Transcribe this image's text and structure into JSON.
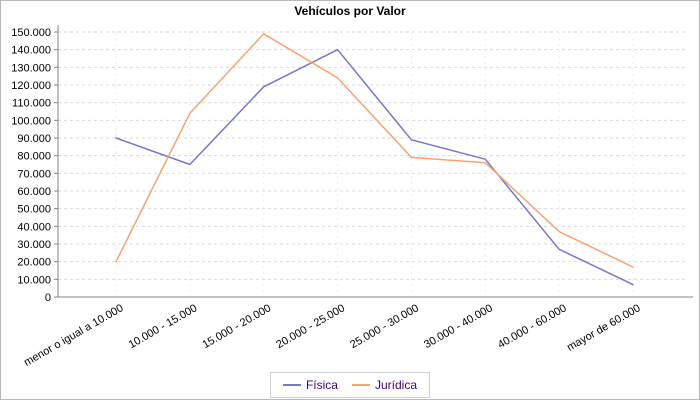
{
  "title": "Vehículos por Valor",
  "chart_data": {
    "type": "line",
    "title": "Vehículos por Valor",
    "categories": [
      "menor o igual a 10.000",
      "10.000 - 15.000",
      "15.000 - 20.000",
      "20.000 - 25.000",
      "25.000 - 30.000",
      "30.000 - 40.000",
      "40.000 - 60.000",
      "mayor de 60.000"
    ],
    "series": [
      {
        "name": "Física",
        "color": "#7577cd",
        "values": [
          90000,
          75000,
          119000,
          140000,
          89000,
          78000,
          27000,
          7000
        ]
      },
      {
        "name": "Jurídica",
        "color": "#f8a26e",
        "values": [
          20000,
          104000,
          149000,
          124000,
          79000,
          76000,
          37000,
          17000
        ]
      }
    ],
    "ylim": [
      0,
      150000
    ],
    "ytick_step": 10000,
    "ytick_labels": [
      "0",
      "10.000",
      "20.000",
      "30.000",
      "40.000",
      "50.000",
      "60.000",
      "70.000",
      "80.000",
      "90.000",
      "100.000",
      "110.000",
      "120.000",
      "130.000",
      "140.000",
      "150.000"
    ],
    "xlabel": "",
    "ylabel": "",
    "grid": "dashed horizontal + faint vertical",
    "legend_position": "bottom-center"
  },
  "legend": {
    "items": [
      {
        "label": "Física",
        "color": "#7577cd"
      },
      {
        "label": "Jurídica",
        "color": "#f8a26e"
      }
    ]
  },
  "colors": {
    "background": "#ffffff",
    "axis": "#848484",
    "gridline": "#d9d9d9",
    "tick_text": "#000000",
    "legend_text": "#400080",
    "legend_border": "#cfcfd8"
  }
}
